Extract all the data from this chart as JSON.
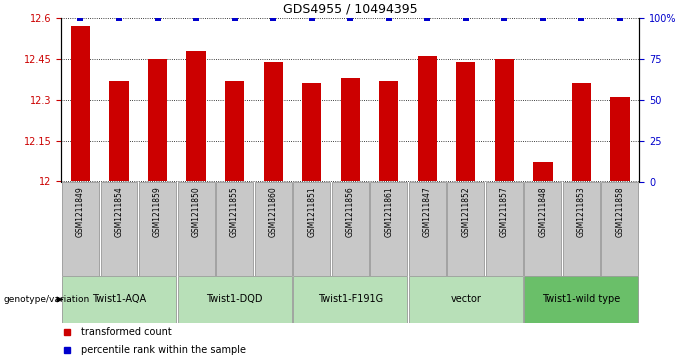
{
  "title": "GDS4955 / 10494395",
  "samples": [
    "GSM1211849",
    "GSM1211854",
    "GSM1211859",
    "GSM1211850",
    "GSM1211855",
    "GSM1211860",
    "GSM1211851",
    "GSM1211856",
    "GSM1211861",
    "GSM1211847",
    "GSM1211852",
    "GSM1211857",
    "GSM1211848",
    "GSM1211853",
    "GSM1211858"
  ],
  "bar_values": [
    12.57,
    12.37,
    12.45,
    12.48,
    12.37,
    12.44,
    12.36,
    12.38,
    12.37,
    12.46,
    12.44,
    12.45,
    12.07,
    12.36,
    12.31
  ],
  "percentile_values": [
    100,
    100,
    100,
    100,
    100,
    100,
    100,
    100,
    100,
    100,
    100,
    100,
    100,
    100,
    100
  ],
  "bar_color": "#cc0000",
  "percentile_color": "#0000cc",
  "ylim_left": [
    12.0,
    12.6
  ],
  "ylim_right": [
    0,
    100
  ],
  "yticks_left": [
    12.0,
    12.15,
    12.3,
    12.45,
    12.6
  ],
  "ytick_labels_left": [
    "12",
    "12.15",
    "12.3",
    "12.45",
    "12.6"
  ],
  "yticks_right": [
    0,
    25,
    50,
    75,
    100
  ],
  "ytick_labels_right": [
    "0",
    "25",
    "50",
    "75",
    "100%"
  ],
  "groups": [
    {
      "label": "Twist1-AQA",
      "count": 3,
      "color": "#b8e0b8"
    },
    {
      "label": "Twist1-DQD",
      "count": 3,
      "color": "#b8e0b8"
    },
    {
      "label": "Twist1-F191G",
      "count": 3,
      "color": "#b8e0b8"
    },
    {
      "label": "vector",
      "count": 3,
      "color": "#b8e0b8"
    },
    {
      "label": "Twist1-wild type",
      "count": 3,
      "color": "#6abf69"
    }
  ],
  "genotype_label": "genotype/variation",
  "legend_bar_label": "transformed count",
  "legend_percentile_label": "percentile rank within the sample",
  "bar_width": 0.5,
  "tick_label_color_left": "#cc0000",
  "tick_label_color_right": "#0000cc",
  "bg_color": "#ffffff",
  "sample_box_color": "#c8c8c8",
  "title_fontsize": 9,
  "tick_fontsize": 7,
  "label_fontsize": 7
}
